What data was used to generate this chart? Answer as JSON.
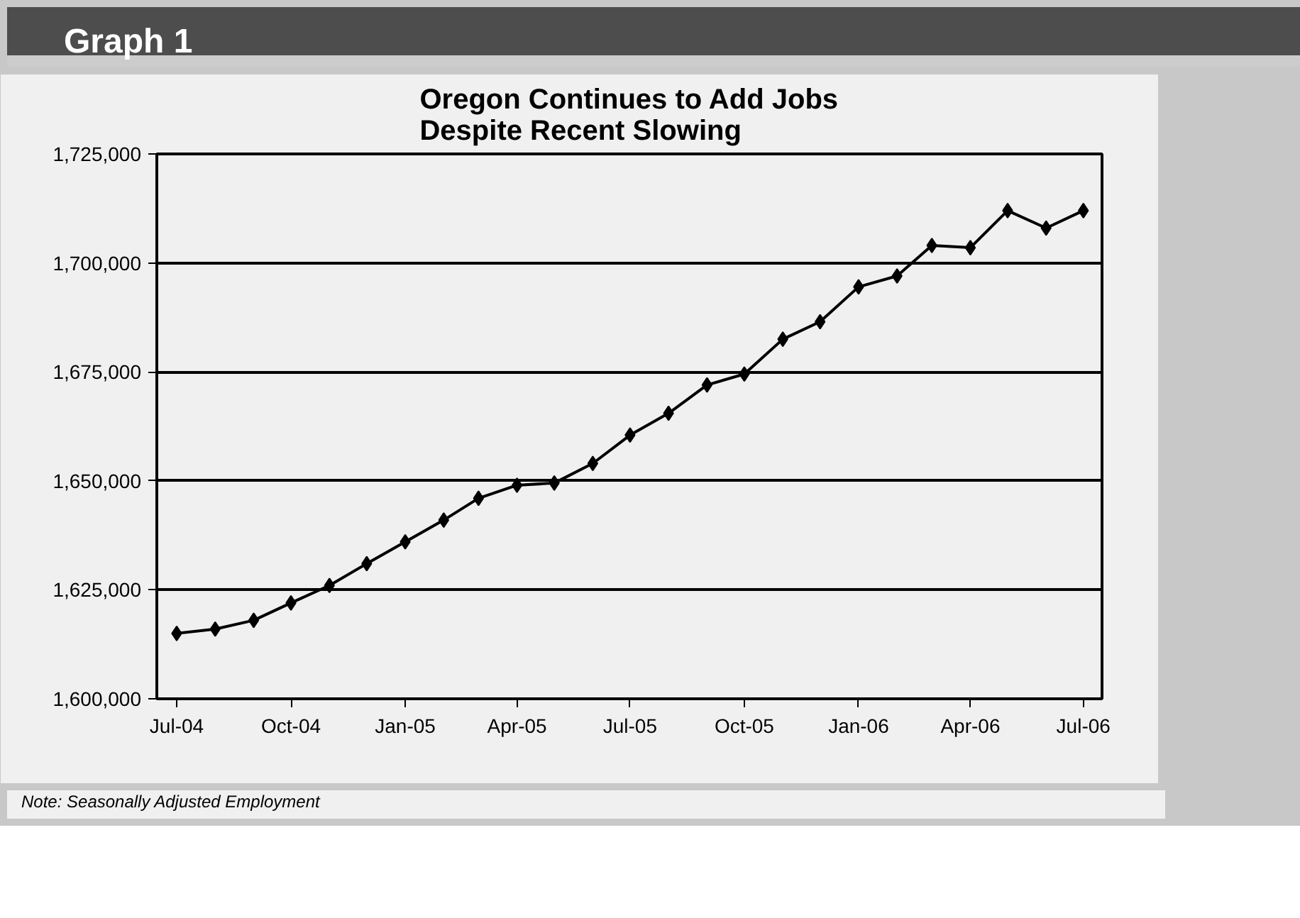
{
  "chart_data": {
    "type": "line",
    "title": "Oregon Continues to Add Jobs\nDespite Recent Slowing",
    "annotations": [
      "Graph 1",
      "Note: Seasonally Adjusted Employment"
    ],
    "x": [
      "2004-07",
      "2004-08",
      "2004-09",
      "2004-10",
      "2004-11",
      "2004-12",
      "2005-01",
      "2005-02",
      "2005-03",
      "2005-04",
      "2005-05",
      "2005-06",
      "2005-07",
      "2005-08",
      "2005-09",
      "2005-10",
      "2005-11",
      "2005-12",
      "2006-01",
      "2006-02",
      "2006-03",
      "2006-04",
      "2006-05",
      "2006-06",
      "2006-07"
    ],
    "series": [
      {
        "color": "#000000",
        "values": [
          1615000,
          1616000,
          1618000,
          1622000,
          1626000,
          1631000,
          1636000,
          1641000,
          1646000,
          1649000,
          1649500,
          1654000,
          1660500,
          1665500,
          1672000,
          1674500,
          1682500,
          1686500,
          1694500,
          1697000,
          1704000,
          1703500,
          1712000,
          1708000,
          1712000
        ]
      }
    ],
    "xlim": [
      "2004-06-15",
      "2006-07-16"
    ],
    "xticks": [
      {
        "value": "2004-07",
        "label": "Jul-04"
      },
      {
        "value": "2004-10",
        "label": "Oct-04"
      },
      {
        "value": "2005-01",
        "label": "Jan-05"
      },
      {
        "value": "2005-04",
        "label": "Apr-05"
      },
      {
        "value": "2005-07",
        "label": "Jul-05"
      },
      {
        "value": "2005-10",
        "label": "Oct-05"
      },
      {
        "value": "2006-01",
        "label": "Jan-06"
      },
      {
        "value": "2006-04",
        "label": "Apr-06"
      },
      {
        "value": "2006-07",
        "label": "Jul-06"
      }
    ],
    "ylim": [
      1600000,
      1725000
    ],
    "yticks": [
      {
        "value": 1600000,
        "label": "1,600,000"
      },
      {
        "value": 1625000,
        "label": "1,625,000"
      },
      {
        "value": 1650000,
        "label": "1,650,000"
      },
      {
        "value": 1675000,
        "label": "1,675,000"
      },
      {
        "value": 1700000,
        "label": "1,700,000"
      },
      {
        "value": 1725000,
        "label": "1,725,000"
      }
    ],
    "grid": "y",
    "marker": "diamond",
    "line_style": "solid"
  }
}
